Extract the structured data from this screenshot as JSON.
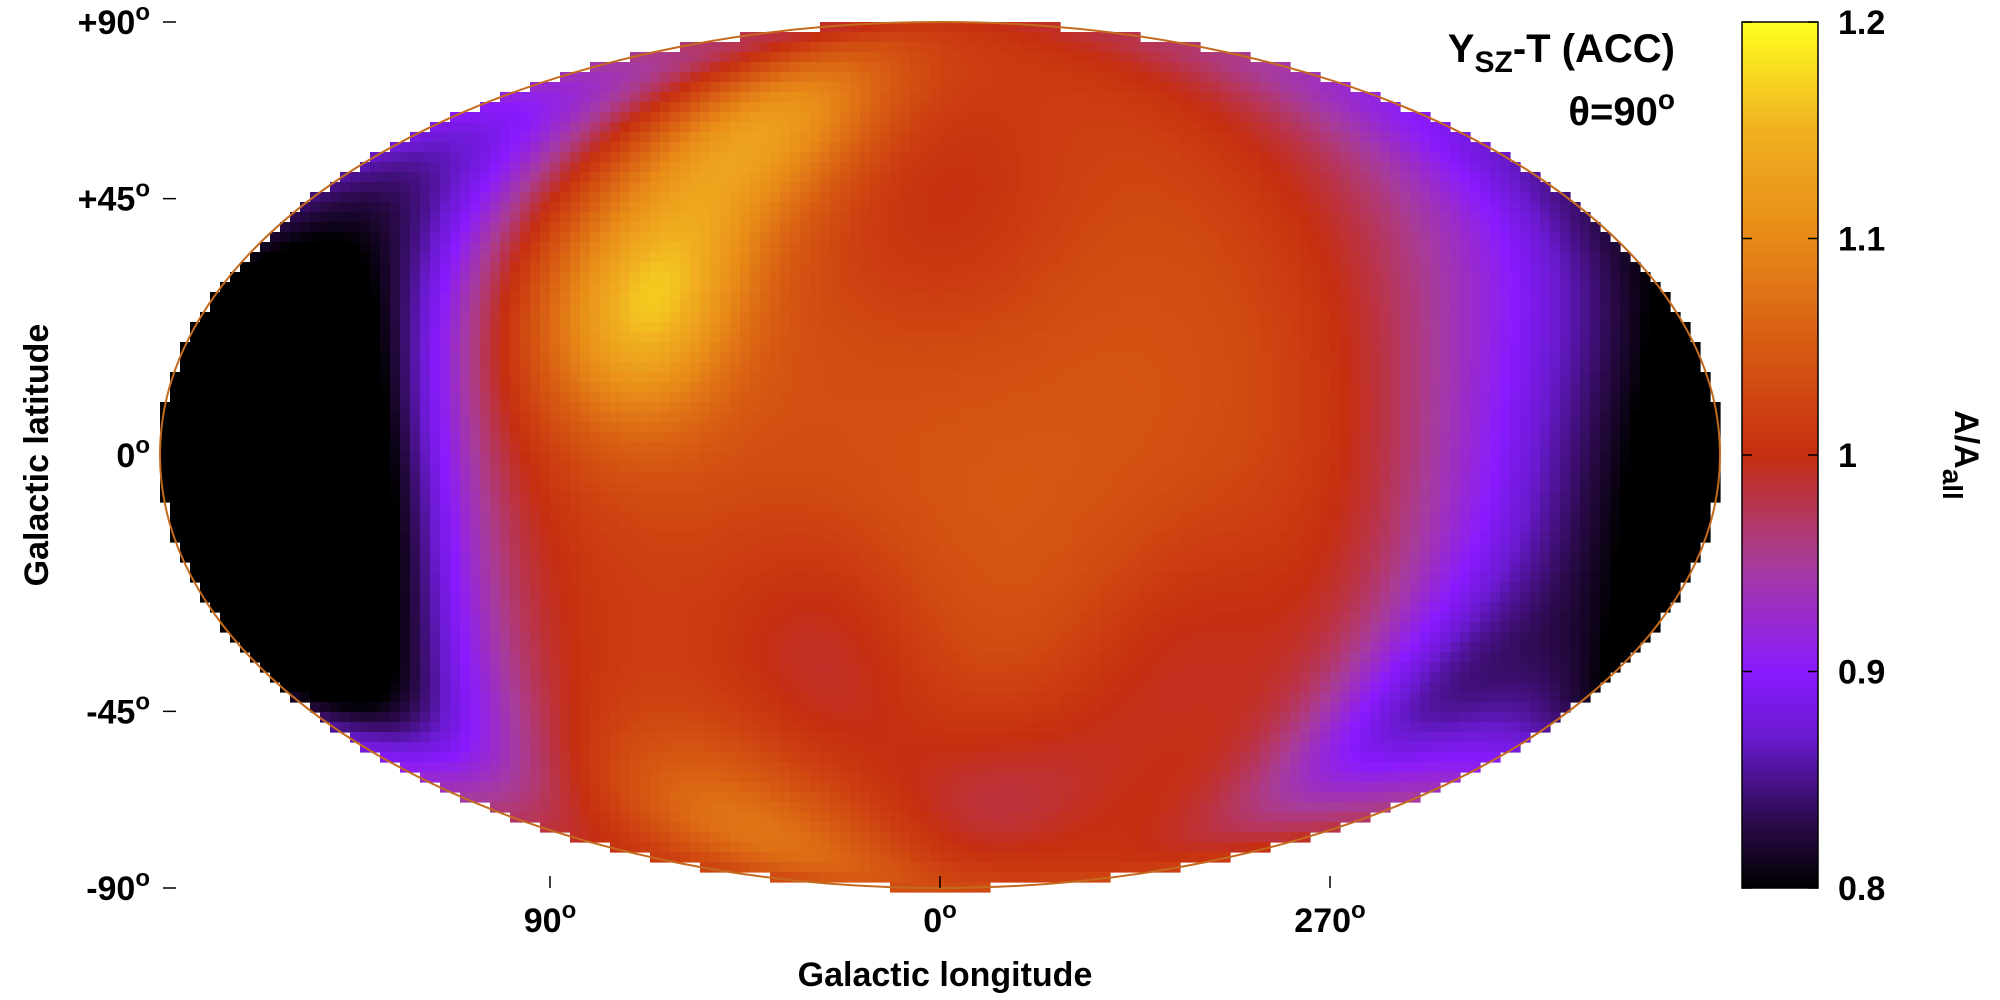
{
  "chart_data": {
    "type": "heatmap",
    "projection": "mollweide",
    "title": "Y",
    "title_subscript": "SZ",
    "title_suffix": "-T (ACC)",
    "subtitle_prefix": "θ=90",
    "subtitle_sup": "o",
    "xlabel": "Galactic longitude",
    "ylabel": "Galactic latitude",
    "lon_ticks": [
      {
        "label": "90",
        "sup": "o",
        "lon": 90
      },
      {
        "label": "0",
        "sup": "o",
        "lon": 0
      },
      {
        "label": "270",
        "sup": "o",
        "lon": 270
      }
    ],
    "lat_ticks": [
      {
        "label": "+90",
        "sup": "o",
        "lat": 90
      },
      {
        "label": "+45",
        "sup": "o",
        "lat": 45
      },
      {
        "label": "0",
        "sup": "o",
        "lat": 0
      },
      {
        "label": "-45",
        "sup": "o",
        "lat": -45
      },
      {
        "label": "-90",
        "sup": "o",
        "lat": -90
      }
    ],
    "colorbar": {
      "label": "A/A",
      "label_subscript": "all",
      "range": [
        0.8,
        1.2
      ],
      "ticks": [
        {
          "label": "1.2",
          "value": 1.2
        },
        {
          "label": "1.1",
          "value": 1.1
        },
        {
          "label": "1",
          "value": 1.0
        },
        {
          "label": "0.9",
          "value": 0.9
        },
        {
          "label": "0.8",
          "value": 0.8
        }
      ],
      "colormap": [
        {
          "v": 0.8,
          "color": "#000000"
        },
        {
          "v": 0.83,
          "color": "#2a0a4a"
        },
        {
          "v": 0.87,
          "color": "#6a1ad0"
        },
        {
          "v": 0.9,
          "color": "#8a1aff"
        },
        {
          "v": 0.95,
          "color": "#a83c9a"
        },
        {
          "v": 1.0,
          "color": "#c62e10"
        },
        {
          "v": 1.05,
          "color": "#d65a12"
        },
        {
          "v": 1.1,
          "color": "#e88a18"
        },
        {
          "v": 1.15,
          "color": "#f0b020"
        },
        {
          "v": 1.2,
          "color": "#ffff20"
        }
      ]
    },
    "map": {
      "base_value": 1.05,
      "features": [
        {
          "lon": 150,
          "lat": -5,
          "sigma": 30,
          "amp": -0.28
        },
        {
          "lon": 165,
          "lat": 10,
          "sigma": 55,
          "amp": -0.12
        },
        {
          "lon": 215,
          "lat": -8,
          "sigma": 32,
          "amp": -0.1
        },
        {
          "lon": 225,
          "lat": -45,
          "sigma": 15,
          "amp": -0.08
        },
        {
          "lon": 168,
          "lat": 55,
          "sigma": 20,
          "amp": -0.06
        },
        {
          "lon": 70,
          "lat": 25,
          "sigma": 14,
          "amp": 0.12
        },
        {
          "lon": 60,
          "lat": 60,
          "sigma": 14,
          "amp": 0.1
        },
        {
          "lon": 110,
          "lat": 10,
          "sigma": 22,
          "amp": 0.06
        },
        {
          "lon": 95,
          "lat": 40,
          "sigma": 18,
          "amp": 0.05
        },
        {
          "lon": 95,
          "lat": -70,
          "sigma": 15,
          "amp": 0.07
        },
        {
          "lon": 30,
          "lat": -35,
          "sigma": 18,
          "amp": -0.05
        },
        {
          "lon": 115,
          "lat": -30,
          "sigma": 18,
          "amp": 0.04
        },
        {
          "lon": -20,
          "lat": -65,
          "sigma": 15,
          "amp": -0.05
        },
        {
          "lon": 0,
          "lat": 45,
          "sigma": 20,
          "amp": -0.04
        },
        {
          "lon": 300,
          "lat": -35,
          "sigma": 18,
          "amp": -0.04
        },
        {
          "lon": 165,
          "lat": -35,
          "sigma": 12,
          "amp": -0.06
        }
      ]
    }
  }
}
